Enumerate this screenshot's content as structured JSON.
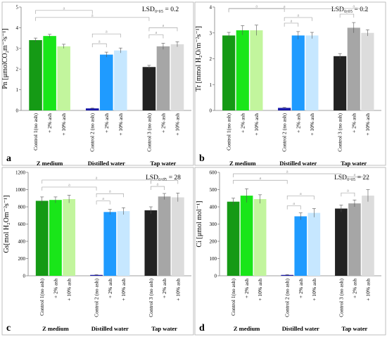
{
  "chart_data": [
    {
      "type": "bar",
      "panel_label": "a",
      "ylabel": "Pn [μmolCO₂m⁻²s⁻¹]",
      "ylim": [
        0,
        5
      ],
      "yticks": [
        0,
        1,
        2,
        3,
        4,
        5
      ],
      "lsd": "LSD₀.₀₅ = 0.2",
      "groups": [
        "Z medium",
        "Distilled water",
        "Tap water"
      ],
      "categories": [
        "Control 1(no ash)",
        "+ 2% ash",
        "+ 10% ash",
        "Control 2 (no ash)",
        "+ 2% ash",
        "+ 10% ash",
        "Control 3 (no ash)",
        "+ 2% ash",
        "+ 10% ash"
      ],
      "values": [
        3.4,
        3.6,
        3.1,
        0.1,
        2.7,
        2.9,
        2.1,
        3.1,
        3.2
      ],
      "errors": [
        0.1,
        0.08,
        0.1,
        0.02,
        0.12,
        0.12,
        0.08,
        0.15,
        0.12
      ],
      "colors": [
        "#159a15",
        "#19e619",
        "#c2f59d",
        "#1a1aa8",
        "#1f9bff",
        "#c6e7ff",
        "#222222",
        "#a6a6a6",
        "#dcdcdc"
      ],
      "sig_marker": "a"
    },
    {
      "type": "bar",
      "panel_label": "b",
      "ylabel": "Tr [mmol H₂O/m⁻²s⁻¹]",
      "ylim": [
        0,
        4
      ],
      "yticks": [
        0,
        1,
        2,
        3,
        4
      ],
      "lsd": "LSD₀.₀₅ = 0.2",
      "groups": [
        "Z medium",
        "Distilled water",
        "Tap water"
      ],
      "categories": [
        "Control 1(no ash)",
        "+ 2% ash",
        "+ 10% ash",
        "Control 2 (no ash)",
        "+ 2% ash",
        "+ 10% ash",
        "Control 3 (no ash)",
        "+ 2% ash",
        "+ 10% ash"
      ],
      "values": [
        2.9,
        3.1,
        3.1,
        0.1,
        2.9,
        2.9,
        2.1,
        3.2,
        3.0
      ],
      "errors": [
        0.12,
        0.18,
        0.2,
        0.02,
        0.15,
        0.12,
        0.1,
        0.2,
        0.12
      ],
      "colors": [
        "#159a15",
        "#19e619",
        "#c2f59d",
        "#1a1aa8",
        "#1f9bff",
        "#c6e7ff",
        "#222222",
        "#a6a6a6",
        "#dcdcdc"
      ],
      "sig_marker": "a"
    },
    {
      "type": "bar",
      "panel_label": "c",
      "ylabel": "Gs[mol H₂Om⁻²s⁻¹]",
      "ylim": [
        0,
        1200
      ],
      "yticks": [
        0,
        200,
        400,
        600,
        800,
        1000,
        1200
      ],
      "lsd": "LSD₀.₀₅ = 28",
      "groups": [
        "Z medium",
        "Distilled water",
        "Tap water"
      ],
      "categories": [
        "Control 1(no ash)",
        "+ 2% ash",
        "+ 10% ash",
        "Control 2 (no ash)",
        "+ 2% ash",
        "+ 10% ash",
        "Control 3 (no ash)",
        "+ 2% ash",
        "+ 10% ash"
      ],
      "values": [
        870,
        880,
        890,
        10,
        740,
        750,
        760,
        920,
        910
      ],
      "errors": [
        45,
        35,
        45,
        3,
        30,
        40,
        40,
        35,
        50
      ],
      "colors": [
        "#159a15",
        "#19e619",
        "#c2f59d",
        "#1a1aa8",
        "#1f9bff",
        "#c6e7ff",
        "#222222",
        "#a6a6a6",
        "#dcdcdc"
      ],
      "sig_marker": "a"
    },
    {
      "type": "bar",
      "panel_label": "d",
      "ylabel": "Ci [μmol mol⁻¹]",
      "ylim": [
        0,
        600
      ],
      "yticks": [
        0,
        100,
        200,
        300,
        400,
        500,
        600
      ],
      "lsd": "LSD₀.₀₅ = 22",
      "groups": [
        "Z medium",
        "Distilled water",
        "Tap water"
      ],
      "categories": [
        "Control 1(no ash)",
        "+ 2% ash",
        "+ 10% ash",
        "Control 2 (no ash)",
        "+ 2% ash",
        "+ 10% ash",
        "Control 3 (no ash)",
        "+ 2% ash",
        "+ 10% ash"
      ],
      "values": [
        430,
        465,
        445,
        5,
        345,
        365,
        390,
        420,
        465
      ],
      "errors": [
        20,
        40,
        25,
        2,
        20,
        25,
        20,
        20,
        35
      ],
      "colors": [
        "#159a15",
        "#19e619",
        "#c2f59d",
        "#1a1aa8",
        "#1f9bff",
        "#c6e7ff",
        "#222222",
        "#a6a6a6",
        "#dcdcdc"
      ],
      "sig_marker": "a"
    }
  ]
}
